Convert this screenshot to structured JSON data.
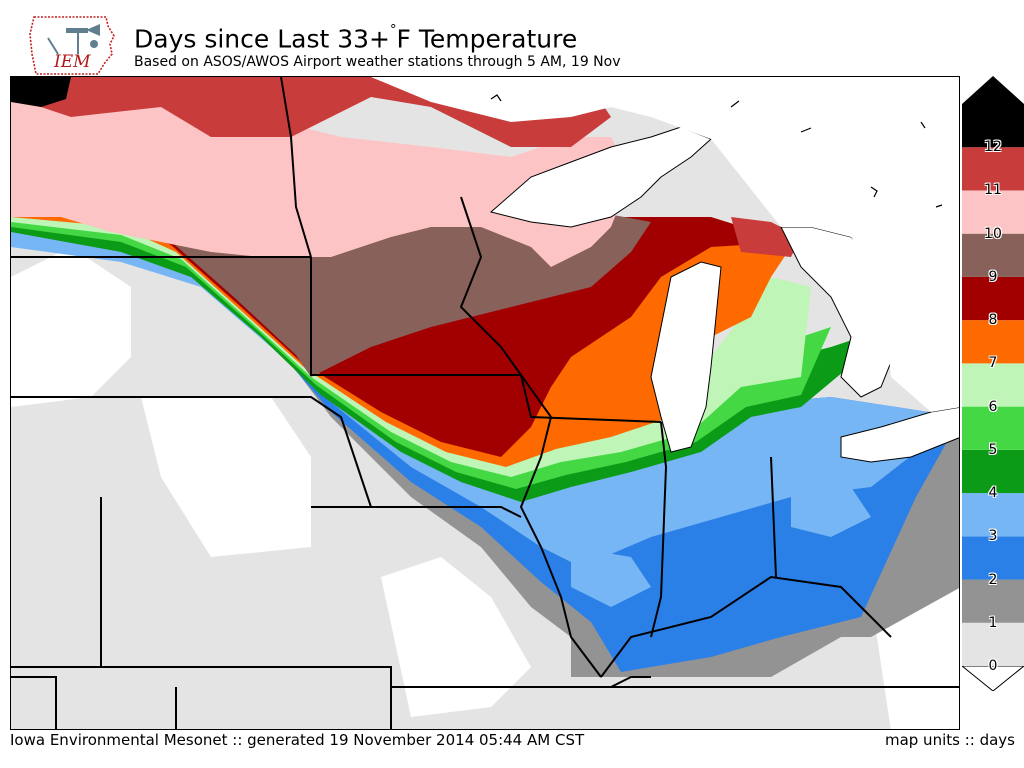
{
  "header": {
    "logo_text": "IEM",
    "title_prefix": "Days since Last 33+",
    "title_degree": "°",
    "title_suffix": "F Temperature",
    "subtitle": "Based on ASOS/AWOS Airport weather stations through 5 AM, 19 Nov"
  },
  "legend": {
    "bins": [
      {
        "label": "0",
        "color": "#e4e4e4"
      },
      {
        "label": "1",
        "color": "#939393"
      },
      {
        "label": "2",
        "color": "#2b80e8"
      },
      {
        "label": "3",
        "color": "#77b6f5"
      },
      {
        "label": "4",
        "color": "#0b9b16"
      },
      {
        "label": "5",
        "color": "#44d844"
      },
      {
        "label": "6",
        "color": "#bff5b6"
      },
      {
        "label": "7",
        "color": "#ff6a00"
      },
      {
        "label": "8",
        "color": "#a20000"
      },
      {
        "label": "9",
        "color": "#87615a"
      },
      {
        "label": "10",
        "color": "#fcc4c4"
      },
      {
        "label": "11",
        "color": "#c83c3c"
      },
      {
        "label": "12",
        "color": "#000000"
      }
    ]
  },
  "footer": {
    "credit": "Iowa Environmental Mesonet :: generated 19 November 2014 05:44 AM CST",
    "units": "map units :: days"
  }
}
